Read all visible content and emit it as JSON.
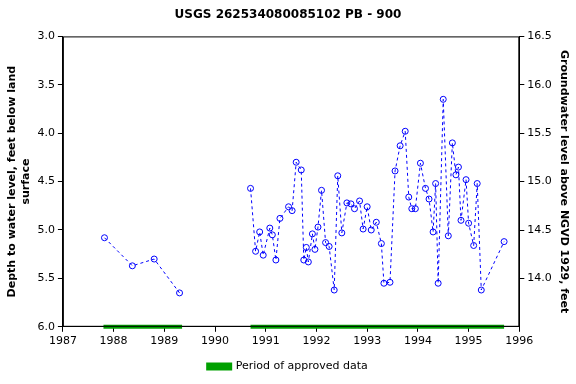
{
  "chart_data": {
    "type": "line",
    "title": "USGS 262534080085102 PB - 900",
    "y_label": [
      "Depth to water level, feet below land",
      "surface"
    ],
    "y2_label": "Groundwater level above NGVD 1929, feet",
    "x": [
      1987.82,
      1988.37,
      1988.8,
      1989.3,
      1990.0,
      1990.7,
      1990.8,
      1990.88,
      1990.95,
      1991.08,
      1991.13,
      1991.2,
      1991.28,
      1991.45,
      1991.52,
      1991.6,
      1991.7,
      1991.75,
      1991.8,
      1991.84,
      1991.92,
      1991.97,
      1992.03,
      1992.1,
      1992.18,
      1992.25,
      1992.35,
      1992.42,
      1992.5,
      1992.6,
      1992.68,
      1992.75,
      1992.85,
      1992.92,
      1993.0,
      1993.08,
      1993.18,
      1993.28,
      1993.33,
      1993.45,
      1993.55,
      1993.65,
      1993.75,
      1993.82,
      1993.88,
      1993.95,
      1994.05,
      1994.15,
      1994.22,
      1994.3,
      1994.35,
      1994.4,
      1994.5,
      1994.6,
      1994.68,
      1994.75,
      1994.8,
      1994.85,
      1994.95,
      1995.0,
      1995.1,
      1995.17,
      1995.25,
      1995.7
    ],
    "series": [
      {
        "color": "#0000ff",
        "marker": "circle",
        "line_style": "dashed",
        "values": [
          5.08,
          5.37,
          5.3,
          5.65,
          null,
          4.57,
          5.22,
          5.02,
          5.26,
          4.98,
          5.05,
          5.31,
          4.88,
          4.76,
          4.8,
          4.3,
          4.38,
          5.31,
          5.18,
          5.33,
          5.04,
          5.2,
          4.97,
          4.59,
          5.13,
          5.17,
          5.62,
          4.44,
          5.03,
          4.72,
          4.73,
          4.78,
          4.7,
          4.99,
          4.76,
          5.0,
          4.92,
          5.14,
          5.55,
          5.54,
          4.39,
          4.13,
          3.98,
          4.66,
          4.78,
          4.78,
          4.31,
          4.57,
          4.68,
          5.02,
          4.52,
          5.55,
          3.65,
          5.06,
          4.1,
          4.43,
          4.35,
          4.9,
          4.48,
          4.93,
          5.16,
          4.52,
          5.62,
          5.12
        ]
      }
    ],
    "approved_periods": {
      "name": "Period of approved data",
      "color": "#00a000",
      "ranges": [
        [
          1987.8,
          1989.35
        ],
        [
          1990.7,
          1995.7
        ]
      ]
    },
    "xlim": [
      1987,
      1996
    ],
    "xticks": [
      1987,
      1988,
      1989,
      1990,
      1991,
      1992,
      1993,
      1994,
      1995,
      1996
    ],
    "ylim": [
      6.0,
      3.0
    ],
    "yticks": [
      {
        "value": 3,
        "label": "3.0"
      },
      {
        "value": 3.5,
        "label": "3.5"
      },
      {
        "value": 4,
        "label": "4.0"
      },
      {
        "value": 4.5,
        "label": "4.5"
      },
      {
        "value": 5,
        "label": "5.0"
      },
      {
        "value": 5.5,
        "label": "5.5"
      },
      {
        "value": 6,
        "label": "6.0"
      }
    ],
    "y2lim": [
      13.5,
      16.5
    ],
    "y2ticks": [
      {
        "value": 14,
        "label": "14.0"
      },
      {
        "value": 14.5,
        "label": "14.5"
      },
      {
        "value": 15,
        "label": "15.0"
      },
      {
        "value": 15.5,
        "label": "15.5"
      },
      {
        "value": 16,
        "label": "16.0"
      },
      {
        "value": 16.5,
        "label": "16.5"
      }
    ],
    "grid": false,
    "legend": "bottom"
  }
}
